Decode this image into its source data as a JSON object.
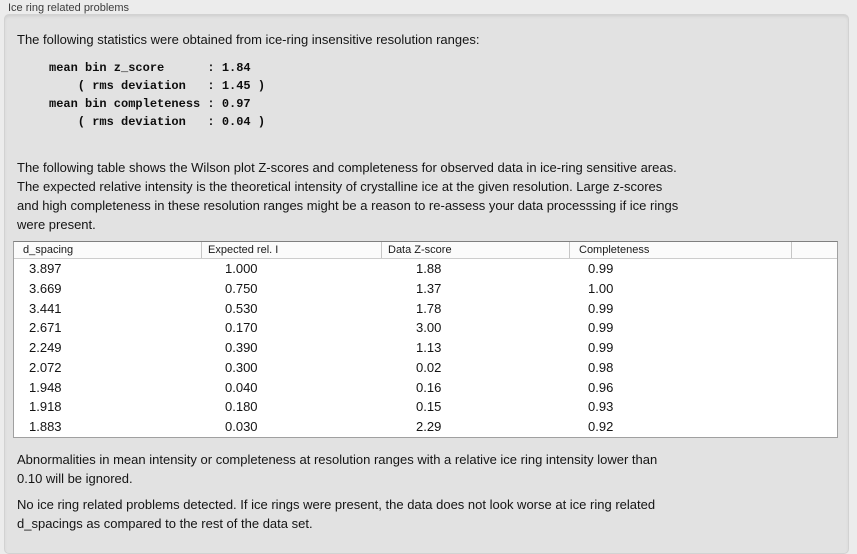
{
  "group_label": "Ice ring related problems",
  "intro": "The following statistics were obtained from ice-ring insensitive resolution ranges:",
  "stats_block": "mean bin z_score      : 1.84\n    ( rms deviation   : 1.45 )\nmean bin completeness : 0.97\n    ( rms deviation   : 0.04 )",
  "table_intro": "The following table shows the Wilson plot Z-scores and completeness for observed data in ice-ring sensitive areas.\nThe expected relative intensity is the theoretical intensity of crystalline ice at the given resolution. Large z-scores\nand high completeness in these resolution ranges might be a reason to re-assess your data processsing if ice rings\nwere present.",
  "table": {
    "columns": [
      "d_spacing",
      "Expected rel. I",
      "Data Z-score",
      "Completeness",
      ""
    ],
    "rows": [
      [
        "3.897",
        "1.000",
        "1.88",
        "0.99"
      ],
      [
        "3.669",
        "0.750",
        "1.37",
        "1.00"
      ],
      [
        "3.441",
        "0.530",
        "1.78",
        "0.99"
      ],
      [
        "2.671",
        "0.170",
        "3.00",
        "0.99"
      ],
      [
        "2.249",
        "0.390",
        "1.13",
        "0.99"
      ],
      [
        "2.072",
        "0.300",
        "0.02",
        "0.98"
      ],
      [
        "1.948",
        "0.040",
        "0.16",
        "0.96"
      ],
      [
        "1.918",
        "0.180",
        "0.15",
        "0.93"
      ],
      [
        "1.883",
        "0.030",
        "2.29",
        "0.92"
      ]
    ]
  },
  "note": "Abnormalities in mean intensity or completeness at resolution ranges with a relative ice ring intensity lower than\n0.10 will be ignored.",
  "conclusion": "No ice ring related problems detected. If ice rings were present, the data does not look worse at ice ring related\nd_spacings as compared to the rest of the data set.",
  "colors": {
    "page_bg": "#ececec",
    "box_bg": "#e2e2e2",
    "table_border": "#a0a0a0"
  }
}
